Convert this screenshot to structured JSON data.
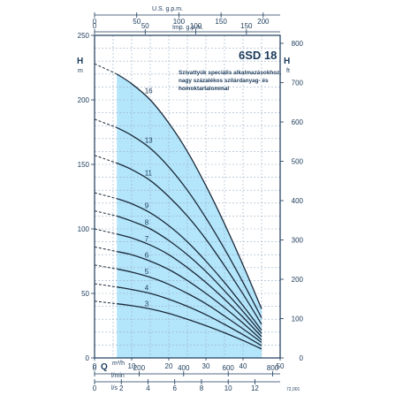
{
  "chart_data": {
    "type": "line",
    "title": "6SD 18",
    "note": [
      "Szivattyúk speciális alkalmazásokhoz,",
      "nagy százalékos szilárdanyag- és",
      "homoktartalommal"
    ],
    "code": "72,001",
    "axes": {
      "x_m3h": {
        "label": "m³/h",
        "letter": "Q",
        "range": [
          0,
          50
        ],
        "ticks": [
          0,
          10,
          20,
          30,
          40,
          50
        ]
      },
      "x_lmin": {
        "label": "l/min",
        "range": [
          0,
          833.33
        ],
        "ticks": [
          0,
          200,
          400,
          600,
          800
        ]
      },
      "x_ls": {
        "label": "l/s",
        "range": [
          0,
          13.889
        ],
        "ticks": [
          0,
          2,
          4,
          6,
          8,
          10,
          12
        ]
      },
      "x_usgpm": {
        "label": "U.S. g.p.m.",
        "range": [
          0,
          220.1
        ],
        "ticks": [
          0,
          50,
          100,
          150,
          200
        ]
      },
      "x_impgpm": {
        "label": "Imp. g.p.m.",
        "range": [
          0,
          183.3
        ],
        "ticks": [
          0,
          50,
          100,
          150
        ]
      },
      "y_m": {
        "letter": "H",
        "unit": "m",
        "range": [
          0,
          250
        ],
        "ticks": [
          0,
          50,
          100,
          150,
          200,
          250
        ]
      },
      "y_ft": {
        "letter": "H",
        "unit": "ft",
        "range": [
          0,
          820.2
        ],
        "ticks": [
          0,
          100,
          200,
          300,
          400,
          500,
          600,
          700,
          800
        ]
      }
    },
    "operating_range_m3h": [
      6,
      45
    ],
    "colors": {
      "range_fill": "#b3e5fb",
      "curve": "#1b2a3a",
      "frame": "#1b3a5a"
    },
    "series": [
      {
        "name": "3",
        "x": [
          0,
          6,
          10,
          15,
          20,
          25,
          30,
          35,
          40,
          45
        ],
        "y": [
          44,
          42,
          40.5,
          38,
          34.5,
          30,
          25,
          19.5,
          13.5,
          7
        ]
      },
      {
        "name": "4",
        "x": [
          0,
          6,
          10,
          15,
          20,
          25,
          30,
          35,
          40,
          45
        ],
        "y": [
          57.5,
          55,
          53,
          50,
          45.5,
          40,
          33.5,
          26,
          18,
          9.5
        ]
      },
      {
        "name": "5",
        "x": [
          0,
          6,
          10,
          15,
          20,
          25,
          30,
          35,
          40,
          45
        ],
        "y": [
          72,
          69,
          66.5,
          62.5,
          57,
          50,
          42,
          32.5,
          22.5,
          12
        ]
      },
      {
        "name": "6",
        "x": [
          0,
          6,
          10,
          15,
          20,
          25,
          30,
          35,
          40,
          45
        ],
        "y": [
          86,
          82.5,
          80,
          75,
          68.5,
          60,
          50,
          39,
          27,
          14
        ]
      },
      {
        "name": "7",
        "x": [
          0,
          6,
          10,
          15,
          20,
          25,
          30,
          35,
          40,
          45
        ],
        "y": [
          100,
          96,
          93,
          87.5,
          80,
          70,
          58.5,
          45.5,
          31.5,
          16.5
        ]
      },
      {
        "name": "8",
        "x": [
          0,
          6,
          10,
          15,
          20,
          25,
          30,
          35,
          40,
          45
        ],
        "y": [
          114,
          110,
          106,
          100,
          91,
          80,
          67,
          52,
          36,
          19
        ]
      },
      {
        "name": "9",
        "x": [
          0,
          6,
          10,
          15,
          20,
          25,
          30,
          35,
          40,
          45
        ],
        "y": [
          128,
          123.5,
          119.5,
          112.5,
          102.5,
          90,
          75,
          58.5,
          40.5,
          21.5
        ]
      },
      {
        "name": "11",
        "x": [
          0,
          6,
          10,
          15,
          20,
          25,
          30,
          35,
          40,
          45
        ],
        "y": [
          157,
          151,
          146,
          137.5,
          125,
          110,
          92,
          71.5,
          49.5,
          26
        ]
      },
      {
        "name": "13",
        "x": [
          0,
          6,
          10,
          15,
          20,
          25,
          30,
          35,
          40,
          45
        ],
        "y": [
          185,
          178.5,
          172.5,
          162.5,
          148,
          130,
          108.5,
          84.5,
          58.5,
          31
        ]
      },
      {
        "name": "16",
        "x": [
          0,
          6,
          10,
          15,
          20,
          25,
          30,
          35,
          40,
          45
        ],
        "y": [
          228,
          220,
          212.5,
          200,
          182,
          160,
          133.5,
          104,
          72,
          38
        ]
      }
    ]
  }
}
